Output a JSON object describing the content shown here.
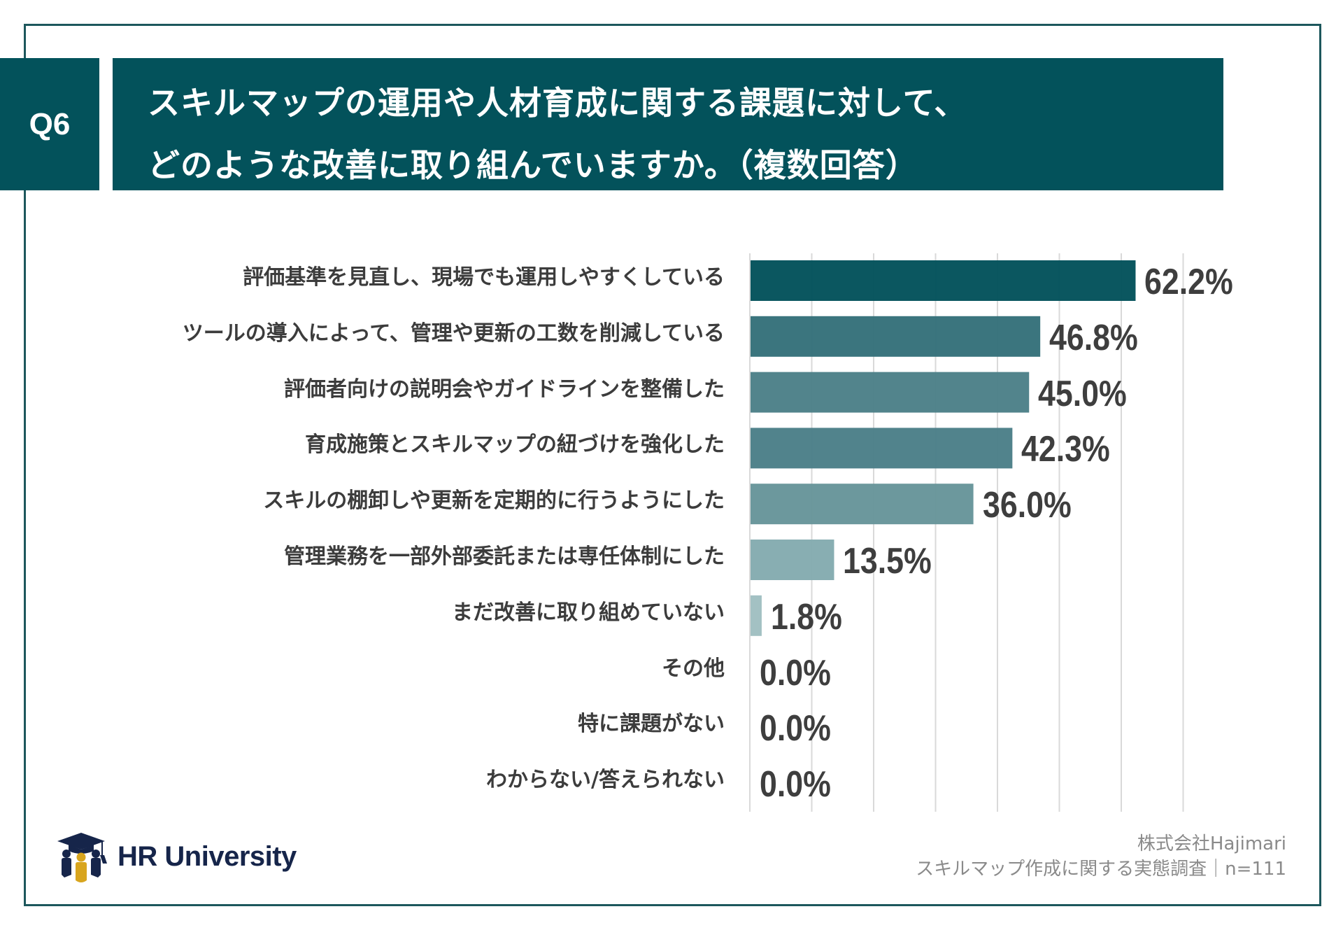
{
  "header": {
    "question_number": "Q6",
    "title_line1": "スキルマップの運用や人材育成に関する課題に対して、",
    "title_line2": "どのような改善に取り組んでいますか。（複数回答）"
  },
  "chart_data": {
    "type": "bar",
    "orientation": "horizontal",
    "title": "スキルマップの運用や人材育成に関する課題に対して、どのような改善に取り組んでいますか。（複数回答）",
    "xlabel": "",
    "ylabel": "",
    "xlim": [
      0,
      70
    ],
    "grid_step": 10,
    "grid": true,
    "unit": "%",
    "categories": [
      "評価基準を見直し、現場でも運用しやすくしている",
      "ツールの導入によって、管理や更新の工数を削減している",
      "評価者向けの説明会やガイドラインを整備した",
      "育成施策とスキルマップの紐づけを強化した",
      "スキルの棚卸しや更新を定期的に行うようにした",
      "管理業務を一部外部委託または専任体制にした",
      "まだ改善に取り組めていない",
      "その他",
      "特に課題がない",
      "わからない/答えられない"
    ],
    "values": [
      62.2,
      46.8,
      45.0,
      42.3,
      36.0,
      13.5,
      1.8,
      0.0,
      0.0,
      0.0
    ],
    "value_labels": [
      "62.2%",
      "46.8%",
      "45.0%",
      "42.3%",
      "36.0%",
      "13.5%",
      "1.8%",
      "0.0%",
      "0.0%",
      "0.0%"
    ],
    "bar_colors": [
      "#03525b",
      "#35717a",
      "#4c8088",
      "#4b7f88",
      "#67959a",
      "#84abaf",
      "#a0bfc1",
      "#a0bfc1",
      "#a0bfc1",
      "#a0bfc1"
    ]
  },
  "colors": {
    "header_bg": "#03525b",
    "frame": "#1d575c",
    "gridline": "#d9d9d9",
    "label_text": "#3c3c3c",
    "logo_navy": "#16254a",
    "logo_gold": "#d8a51e"
  },
  "footer": {
    "logo_text": "HR University",
    "logo_icon": "graduation-cap-people-icon",
    "company": "株式会社Hajimari",
    "survey": "スキルマップ作成に関する実態調査｜n=111"
  }
}
